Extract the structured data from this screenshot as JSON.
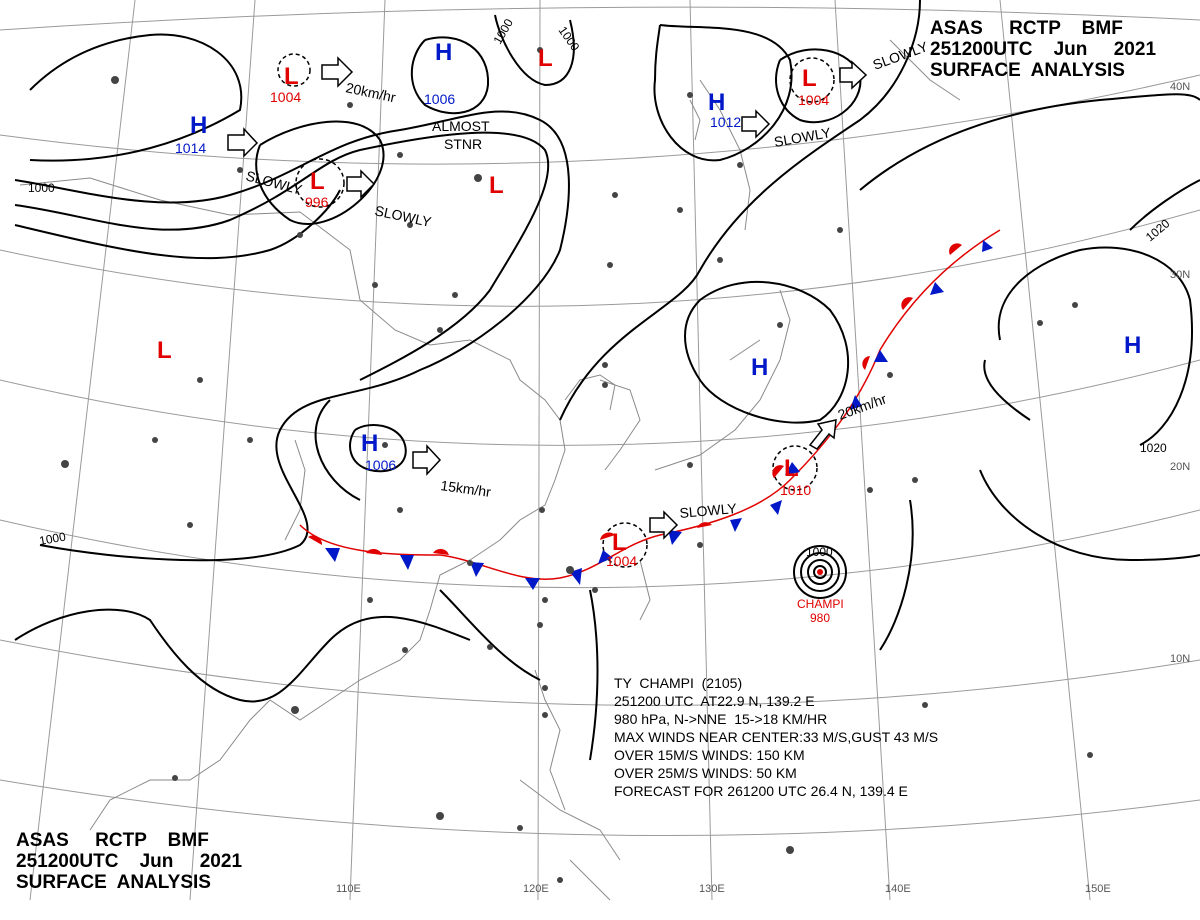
{
  "header": {
    "line1": "ASAS     RCTP    BMF",
    "line2": "251200UTC    Jun     2021",
    "line3": "SURFACE  ANALYSIS"
  },
  "typhoon_info": {
    "title": "TY  CHAMPI  (2105)",
    "position": "251200 UTC  AT22.9 N, 139.2 E",
    "pressure_motion": "980 hPa, N->NNE  15->18 KM/HR",
    "max_winds": "MAX WINDS NEAR CENTER:33 M/S,GUST 43 M/S",
    "over15": "OVER 15M/S WINDS: 150 KM",
    "over25": "OVER 25M/S WINDS: 50 KM",
    "forecast": "FORECAST FOR 261200 UTC 26.4 N, 139.4 E"
  },
  "typhoon_label": {
    "name": "CHAMPI",
    "pressure": "980",
    "isobar": "1000"
  },
  "lon_labels": [
    "110E",
    "120E",
    "130E",
    "140E",
    "150E"
  ],
  "lat_labels": [
    "40N",
    "30N",
    "20N",
    "10N"
  ],
  "pressure_centers": [
    {
      "type": "L",
      "value": "1004"
    },
    {
      "type": "H",
      "value": "1014"
    },
    {
      "type": "L",
      "value": "996"
    },
    {
      "type": "H",
      "value": "1006"
    },
    {
      "type": "L",
      "value": ""
    },
    {
      "type": "L",
      "value": ""
    },
    {
      "type": "H",
      "value": "1012"
    },
    {
      "type": "L",
      "value": "1004"
    },
    {
      "type": "H",
      "value": ""
    },
    {
      "type": "L",
      "value": ""
    },
    {
      "type": "H",
      "value": "1006"
    },
    {
      "type": "L",
      "value": "1010"
    },
    {
      "type": "L",
      "value": "1004"
    },
    {
      "type": "H",
      "value": ""
    }
  ],
  "motion_labels": [
    "20km/hr",
    "SLOWLY",
    "SLOWLY",
    "ALMOST",
    "STNR",
    "SLOWLY",
    "SLOWLY",
    "20km/hr",
    "15km/hr",
    "SLOWLY"
  ],
  "isobar_labels": [
    "1000",
    "1000",
    "1000",
    "1000",
    "1020",
    "1020"
  ],
  "colors": {
    "low": "#e00000",
    "high": "#0018c8",
    "isobar": "#000000",
    "grid": "#9a9a9a",
    "coast": "#8a8a8a",
    "warm_front": "#e00000",
    "cold_front": "#0018c8"
  }
}
